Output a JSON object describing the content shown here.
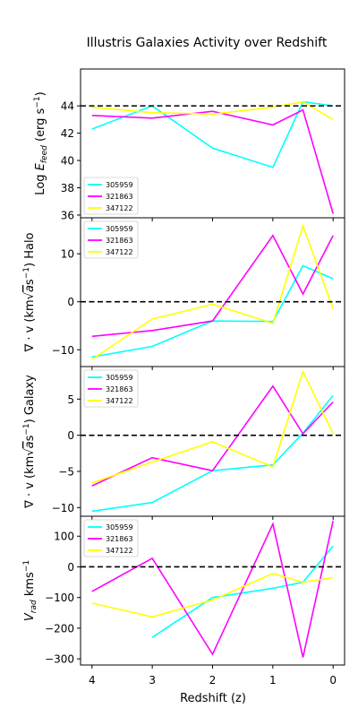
{
  "chart_data": {
    "type": "line",
    "title": "Illustris Galaxies Activity over Redshift",
    "xlabel": "Redshift (z)",
    "x_ticks": [
      "4",
      "3",
      "2",
      "1",
      "0"
    ],
    "x_inverted": true,
    "colors": {
      "305959": "#00ffff",
      "321863": "#ff00ff",
      "347122": "#ffff00",
      "reference_line": "#000000"
    },
    "panels": [
      {
        "ylabel_prefix": "Log ",
        "ylabel_var": "E",
        "ylabel_sub": "feed",
        "ylabel_suffix": " (erg s",
        "ylabel_sup": "−1",
        "ylabel_end": ")",
        "ylim": [
          35.8,
          46.7
        ],
        "yticks": [
          36,
          38,
          40,
          42,
          44
        ],
        "hline": 44,
        "legend": [
          "305959",
          "321863",
          "347122"
        ],
        "legend_position": "lower-left",
        "series": [
          {
            "name": "305959",
            "x": [
              4,
              3,
              2,
              1,
              0.5,
              0
            ],
            "y": [
              42.3,
              44.0,
              40.9,
              39.5,
              44.3,
              44.0
            ]
          },
          {
            "name": "321863",
            "x": [
              4,
              3,
              2,
              1,
              0.5,
              0
            ],
            "y": [
              43.3,
              43.1,
              43.6,
              42.6,
              43.7,
              36.1
            ]
          },
          {
            "name": "347122",
            "x": [
              4,
              3,
              2,
              1,
              0.5,
              0
            ],
            "y": [
              43.9,
              43.5,
              43.4,
              43.9,
              44.3,
              43.0
            ]
          }
        ]
      },
      {
        "ylabel_main": "∇ · v (km",
        "ylabel_sqrt": "a",
        "ylabel_tail": "s",
        "ylabel_sup": "−1",
        "ylabel_end": ") Halo",
        "ylim": [
          -13.5,
          17.5
        ],
        "yticks": [
          -10,
          0,
          10
        ],
        "hline": 0,
        "legend": [
          "305959",
          "321863",
          "347122"
        ],
        "legend_position": "upper-left",
        "series": [
          {
            "name": "305959",
            "x": [
              4,
              3,
              2,
              1,
              0.5,
              0
            ],
            "y": [
              -11.5,
              -9.3,
              -4.0,
              -4.1,
              7.5,
              4.8
            ]
          },
          {
            "name": "321863",
            "x": [
              4,
              3,
              2,
              1,
              0.5,
              0
            ],
            "y": [
              -7.2,
              -6.0,
              -4.0,
              13.8,
              1.6,
              13.8
            ]
          },
          {
            "name": "347122",
            "x": [
              4,
              3,
              2,
              1,
              0.5,
              0
            ],
            "y": [
              -12.0,
              -3.6,
              -0.5,
              -4.5,
              15.8,
              -1.5
            ]
          }
        ]
      },
      {
        "ylabel_main": "∇ · v (km",
        "ylabel_sqrt": "a",
        "ylabel_tail": "s",
        "ylabel_sup": "−1",
        "ylabel_end": ") Galaxy",
        "ylim": [
          -11.2,
          9.5
        ],
        "yticks": [
          -10,
          -5,
          0,
          5
        ],
        "hline": 0,
        "legend": [
          "305959",
          "321863",
          "347122"
        ],
        "legend_position": "upper-left",
        "series": [
          {
            "name": "305959",
            "x": [
              4,
              3,
              2,
              1,
              0.5,
              0
            ],
            "y": [
              -10.5,
              -9.3,
              -4.9,
              -4.1,
              0.3,
              5.5
            ]
          },
          {
            "name": "321863",
            "x": [
              4,
              3,
              2,
              1,
              0.5,
              0
            ],
            "y": [
              -7.0,
              -3.1,
              -4.9,
              6.8,
              0.2,
              4.6
            ]
          },
          {
            "name": "347122",
            "x": [
              4,
              3,
              2,
              1,
              0.5,
              0
            ],
            "y": [
              -6.6,
              -3.7,
              -0.9,
              -4.4,
              8.8,
              0.2
            ]
          }
        ]
      },
      {
        "ylabel_var": "V",
        "ylabel_sub": "rad",
        "ylabel_suffix": " kms",
        "ylabel_sup": "−1",
        "ylim": [
          -320,
          165
        ],
        "yticks": [
          -300,
          -200,
          -100,
          0,
          100
        ],
        "hline": 0,
        "legend": [
          "305959",
          "321863",
          "347122"
        ],
        "legend_position": "upper-left",
        "series": [
          {
            "name": "305959",
            "x": [
              3,
              2,
              1,
              0.5,
              0
            ],
            "y": [
              -230,
              -100,
              -70,
              -50,
              68
            ]
          },
          {
            "name": "321863",
            "x": [
              4,
              3,
              2,
              1,
              0.5,
              0
            ],
            "y": [
              -80,
              28,
              -285,
              140,
              -295,
              150
            ]
          },
          {
            "name": "347122",
            "x": [
              4,
              3,
              2,
              1,
              0.5,
              0
            ],
            "y": [
              -118,
              -163,
              -108,
              -22,
              -50,
              -35
            ]
          }
        ]
      }
    ]
  }
}
